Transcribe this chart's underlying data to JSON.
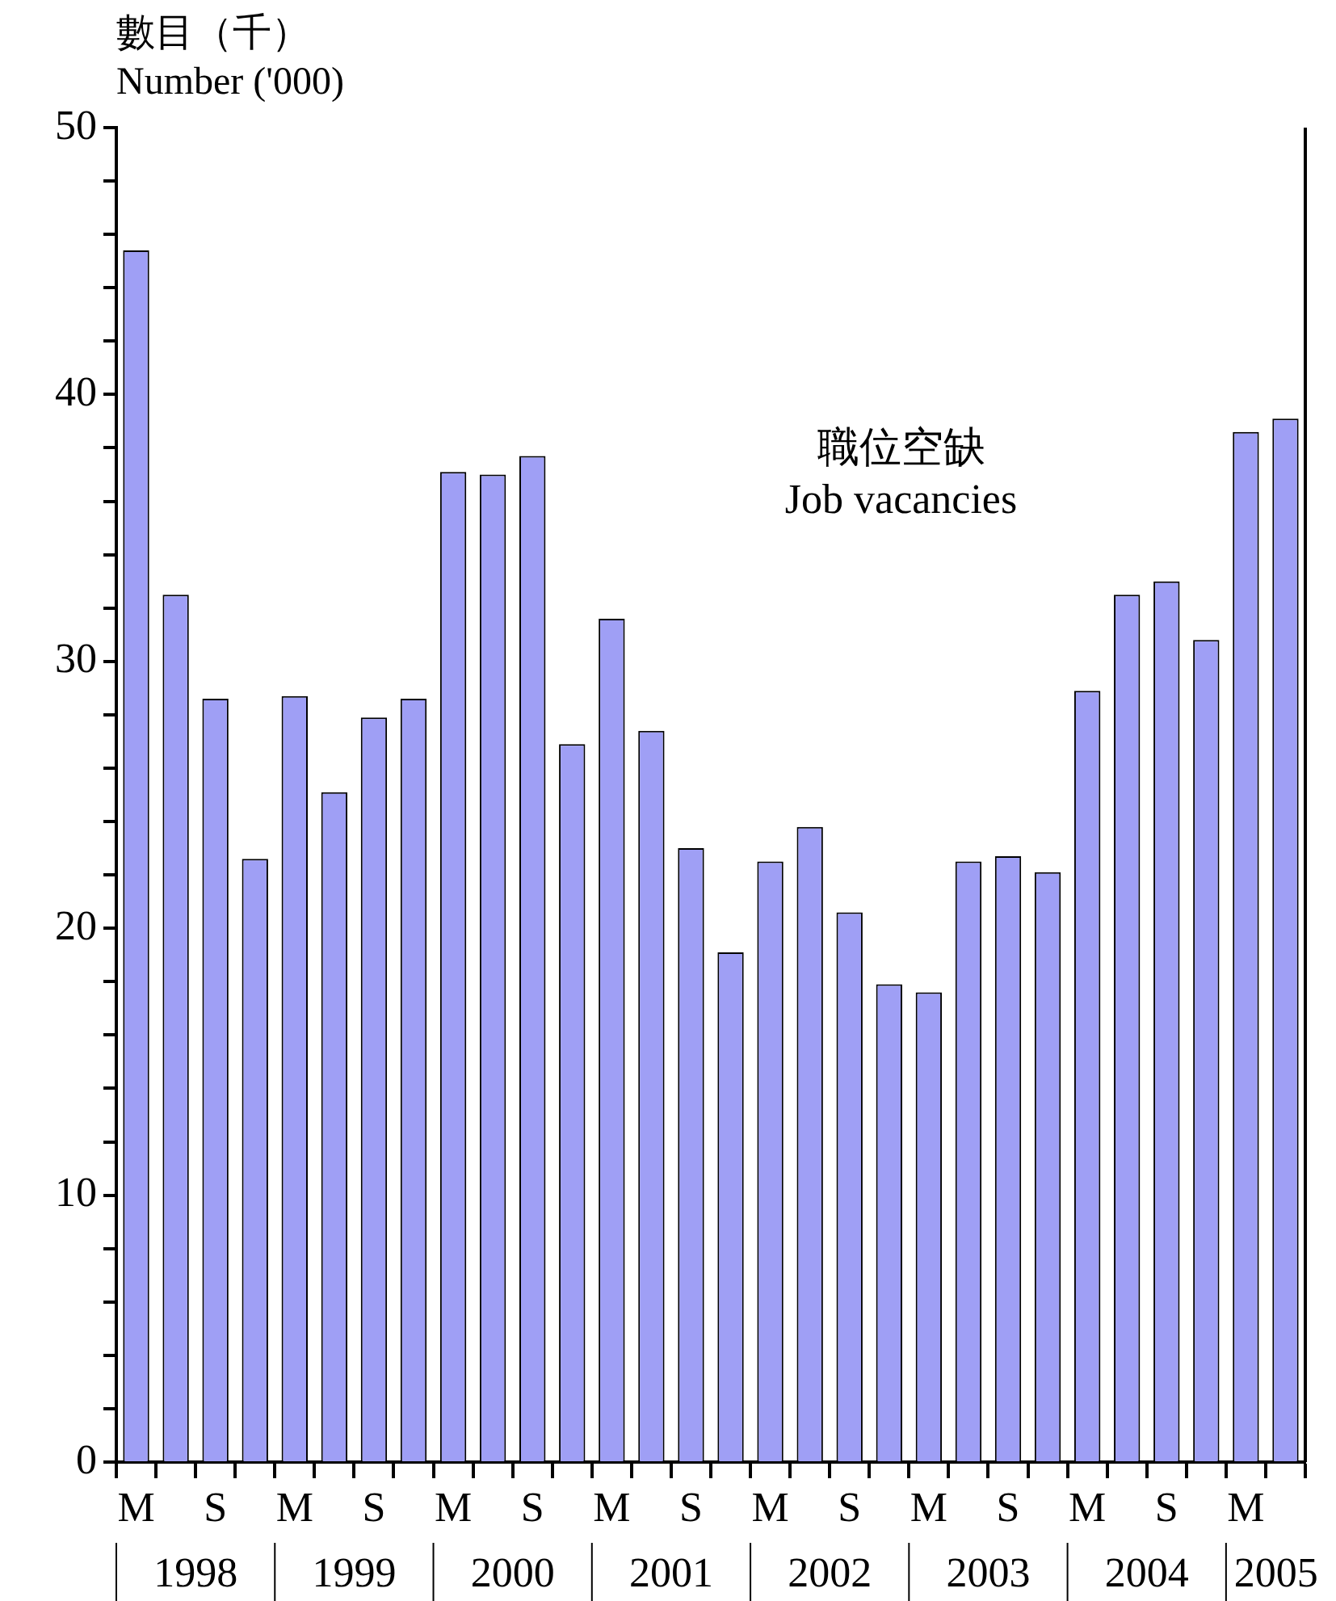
{
  "chart_data": {
    "type": "bar",
    "ylabel": "數目（千）\nNumber ('000)",
    "categories": [
      "M",
      null,
      "S",
      null,
      "M",
      null,
      "S",
      null,
      "M",
      null,
      "S",
      null,
      "M",
      null,
      "S",
      null,
      "M",
      null,
      "S",
      null,
      "M",
      null,
      "S",
      null,
      "M",
      null,
      "S",
      null,
      "M",
      null
    ],
    "values": [
      45.4,
      32.5,
      28.6,
      22.6,
      28.7,
      25.1,
      27.9,
      28.6,
      37.1,
      37.0,
      37.7,
      26.9,
      31.6,
      27.4,
      23.0,
      19.1,
      22.5,
      23.8,
      20.6,
      17.9,
      17.6,
      22.5,
      22.7,
      22.1,
      28.9,
      32.5,
      33.0,
      30.8,
      38.6,
      39.1
    ],
    "color": "#9f9ff5",
    "ylim": [
      0,
      50
    ],
    "yticks": [
      0,
      {
        "value": 2,
        "label": null
      },
      {
        "value": 4,
        "label": null
      },
      {
        "value": 6,
        "label": null
      },
      {
        "value": 8,
        "label": null
      },
      10,
      {
        "value": 12,
        "label": null
      },
      {
        "value": 14,
        "label": null
      },
      {
        "value": 16,
        "label": null
      },
      {
        "value": 18,
        "label": null
      },
      20,
      {
        "value": 22,
        "label": null
      },
      {
        "value": 24,
        "label": null
      },
      {
        "value": 26,
        "label": null
      },
      {
        "value": 28,
        "label": null
      },
      30,
      {
        "value": 32,
        "label": null
      },
      {
        "value": 34,
        "label": null
      },
      {
        "value": 36,
        "label": null
      },
      {
        "value": 38,
        "label": null
      },
      40,
      {
        "value": 42,
        "label": null
      },
      {
        "value": 44,
        "label": null
      },
      {
        "value": 46,
        "label": null
      },
      {
        "value": 48,
        "label": null
      },
      50
    ],
    "grid": false,
    "legend": false,
    "annotations": [
      "職位空缺\nJob vacancies",
      "1998",
      "1999",
      "2000",
      "2001",
      "2002",
      "2003",
      "2004",
      "2005"
    ]
  }
}
